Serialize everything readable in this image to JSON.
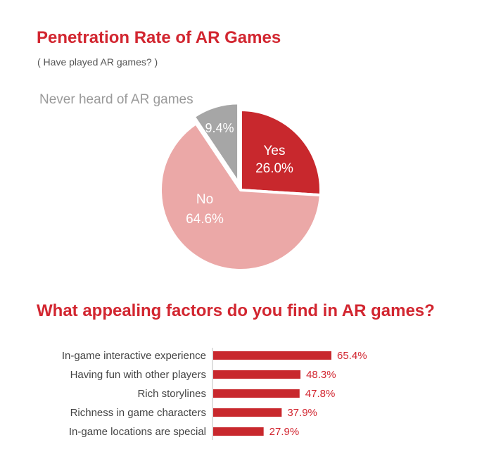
{
  "colors": {
    "accent": "#d22630",
    "yes": "#c8282d",
    "no": "#eba8a7",
    "never": "#a6a6a6",
    "outside_label": "#9a9a9a"
  },
  "chart_data": [
    {
      "type": "pie",
      "title": "Penetration Rate of AR Games",
      "subtitle": "( Have played AR games? )",
      "slices": [
        {
          "label": "Yes",
          "value": 26.0,
          "value_label": "26.0%"
        },
        {
          "label": "No",
          "value": 64.6,
          "value_label": "64.6%"
        },
        {
          "label": "Never heard of AR games",
          "value": 9.4,
          "value_label": "9.4%"
        }
      ]
    },
    {
      "type": "bar",
      "orientation": "horizontal",
      "title": "What appealing factors do you find in AR games?",
      "categories": [
        "In-game interactive experience",
        "Having fun with other players",
        "Rich storylines",
        "Richness in game characters",
        "In-game locations are special"
      ],
      "values": [
        65.4,
        48.3,
        47.8,
        37.9,
        27.9
      ],
      "value_labels": [
        "65.4%",
        "48.3%",
        "47.8%",
        "37.9%",
        "27.9%"
      ],
      "xlim": [
        0,
        100
      ]
    }
  ]
}
